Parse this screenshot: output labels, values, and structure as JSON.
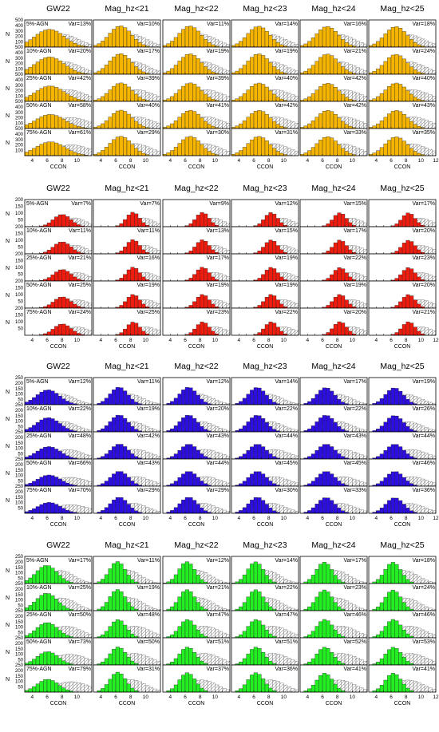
{
  "figure": {
    "column_titles": [
      "GW22",
      "Mag_hz<21",
      "Mag_hz<22",
      "Mag_hz<23",
      "Mag_hz<24",
      "Mag_hz<25"
    ],
    "row_labels": [
      "5%-AGN",
      "10%-AGN",
      "25%-AGN",
      "50%-AGN",
      "75%-AGN"
    ],
    "y_axis_label": "N",
    "x_axis_label": "CCON",
    "x_tick_labels": [
      "4",
      "6",
      "8",
      "10",
      "12"
    ],
    "var_prefix": "Var=",
    "var_suffix": "%"
  },
  "chart_data": [
    {
      "type": "bar",
      "block": 1,
      "color": "#f5b400",
      "y_ticks": [
        "100",
        "200",
        "300",
        "400",
        "500"
      ],
      "ylim": [
        0,
        500
      ],
      "xlim": [
        3,
        12
      ],
      "var": [
        [
          13,
          10,
          11,
          14,
          16,
          18
        ],
        [
          20,
          17,
          19,
          19,
          21,
          24
        ],
        [
          42,
          39,
          39,
          40,
          42,
          40
        ],
        [
          58,
          40,
          41,
          42,
          42,
          43
        ],
        [
          61,
          29,
          30,
          31,
          33,
          35
        ]
      ]
    },
    {
      "type": "bar",
      "block": 2,
      "color": "#ee1c0e",
      "y_ticks": [
        "50",
        "100",
        "150",
        "200"
      ],
      "ylim": [
        0,
        200
      ],
      "xlim": [
        3,
        12
      ],
      "var": [
        [
          7,
          7,
          9,
          12,
          15,
          17
        ],
        [
          11,
          11,
          13,
          15,
          17,
          20
        ],
        [
          21,
          16,
          17,
          19,
          22,
          23
        ],
        [
          25,
          19,
          19,
          19,
          19,
          20
        ],
        [
          24,
          25,
          23,
          22,
          20,
          21
        ]
      ]
    },
    {
      "type": "bar",
      "block": 3,
      "color": "#2c0fe0",
      "y_ticks": [
        "50",
        "100",
        "150",
        "200",
        "250"
      ],
      "ylim": [
        0,
        250
      ],
      "xlim": [
        3,
        12
      ],
      "var": [
        [
          12,
          11,
          12,
          14,
          17,
          19
        ],
        [
          22,
          19,
          20,
          22,
          22,
          26
        ],
        [
          48,
          42,
          43,
          44,
          43,
          44
        ],
        [
          66,
          43,
          44,
          45,
          45,
          46
        ],
        [
          70,
          29,
          29,
          30,
          33,
          36
        ]
      ]
    },
    {
      "type": "bar",
      "block": 4,
      "color": "#22ee22",
      "y_ticks": [
        "50",
        "100",
        "150",
        "200",
        "250"
      ],
      "ylim": [
        0,
        250
      ],
      "xlim": [
        3,
        12
      ],
      "var": [
        [
          17,
          11,
          12,
          14,
          17,
          18
        ],
        [
          25,
          19,
          21,
          22,
          23,
          24
        ],
        [
          50,
          48,
          47,
          47,
          46,
          46
        ],
        [
          73,
          50,
          51,
          51,
          52,
          53
        ],
        [
          79,
          31,
          37,
          36,
          41,
          41
        ]
      ]
    }
  ]
}
